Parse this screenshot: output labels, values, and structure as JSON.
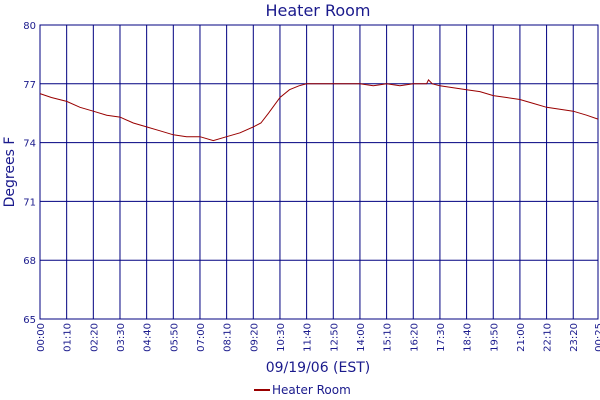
{
  "chart_data": {
    "type": "line",
    "title": "Heater Room",
    "xlabel": "09/19/06 (EST)",
    "ylabel": "Degrees F",
    "ylim": [
      65,
      80
    ],
    "yticks": [
      65,
      68,
      71,
      74,
      77,
      80
    ],
    "xticks": [
      "00:00",
      "01:10",
      "02:20",
      "03:30",
      "04:40",
      "05:50",
      "07:00",
      "08:10",
      "09:20",
      "10:30",
      "11:40",
      "12:50",
      "14:00",
      "15:10",
      "16:20",
      "17:30",
      "18:40",
      "19:50",
      "21:00",
      "22:10",
      "23:20",
      "00:25"
    ],
    "grid": true,
    "legend_position": "bottom",
    "colors": {
      "series": "#990000",
      "grid": "#000080",
      "text": "#1a1a8c"
    },
    "series": [
      {
        "name": "Heater Room",
        "x": [
          "00:00",
          "00:30",
          "01:10",
          "01:45",
          "02:20",
          "02:55",
          "03:30",
          "04:05",
          "04:40",
          "05:15",
          "05:50",
          "06:25",
          "07:00",
          "07:35",
          "08:10",
          "08:45",
          "09:20",
          "09:40",
          "10:00",
          "10:30",
          "10:55",
          "11:20",
          "11:40",
          "12:15",
          "12:50",
          "13:25",
          "14:00",
          "14:35",
          "15:10",
          "15:45",
          "16:20",
          "16:55",
          "17:00",
          "17:10",
          "17:30",
          "18:05",
          "18:40",
          "19:15",
          "19:50",
          "20:25",
          "21:00",
          "21:35",
          "22:10",
          "22:45",
          "23:20",
          "23:55",
          "00:25"
        ],
        "values": [
          76.5,
          76.3,
          76.1,
          75.8,
          75.6,
          75.4,
          75.3,
          75.0,
          74.8,
          74.6,
          74.4,
          74.3,
          74.3,
          74.1,
          74.3,
          74.5,
          74.8,
          75.0,
          75.5,
          76.3,
          76.7,
          76.9,
          77.0,
          77.0,
          77.0,
          77.0,
          77.0,
          76.9,
          77.0,
          76.9,
          77.0,
          77.0,
          77.2,
          77.0,
          76.9,
          76.8,
          76.7,
          76.6,
          76.4,
          76.3,
          76.2,
          76.0,
          75.8,
          75.7,
          75.6,
          75.4,
          75.2
        ]
      }
    ]
  }
}
